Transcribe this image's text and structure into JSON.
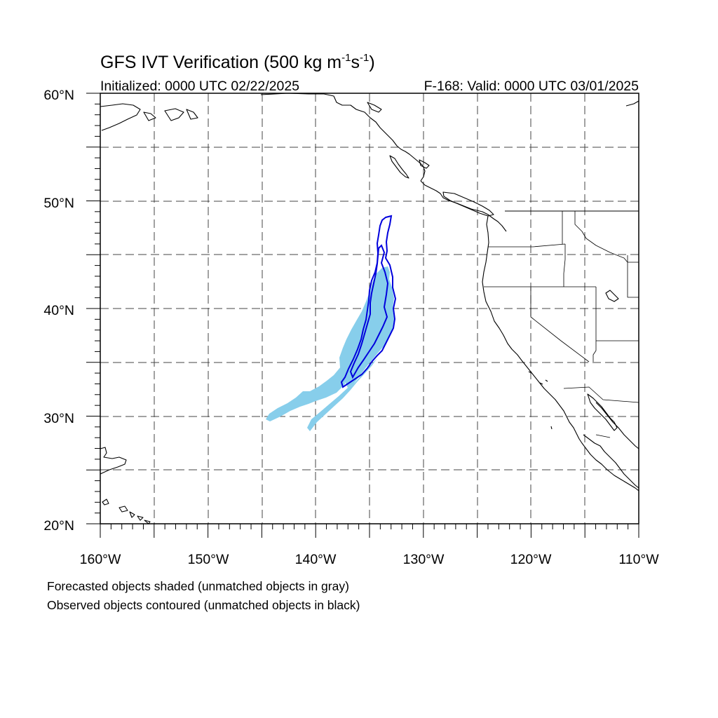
{
  "title": {
    "main": "GFS IVT Verification (500 kg m",
    "exp1": "-1",
    "mid": "s",
    "exp2": "-1",
    "end": ")"
  },
  "initialized": "Initialized: 0000 UTC 02/22/2025",
  "valid": "F-168: Valid: 0000 UTC 03/01/2025",
  "lat_labels": [
    "20°N",
    "30°N",
    "40°N",
    "50°N",
    "60°N"
  ],
  "lon_labels": [
    "160°W",
    "150°W",
    "140°W",
    "130°W",
    "120°W",
    "110°W"
  ],
  "notes": {
    "forecast": "Forecasted objects shaded (unmatched objects in gray)",
    "observed": "Observed objects contoured (unmatched objects in black)"
  },
  "map": {
    "lon_range": [
      -160,
      -110
    ],
    "lat_range": [
      20,
      60
    ],
    "gridline_lons": [
      -155,
      -150,
      -145,
      -140,
      -135,
      -130,
      -125,
      -120,
      -115
    ],
    "gridline_lats": [
      25,
      30,
      35,
      40,
      45,
      50,
      55
    ],
    "colors": {
      "forecast_fill": "#87ceeb",
      "observed_contour": "#0000dd",
      "coastline": "#000000",
      "grid": "#444444"
    }
  }
}
